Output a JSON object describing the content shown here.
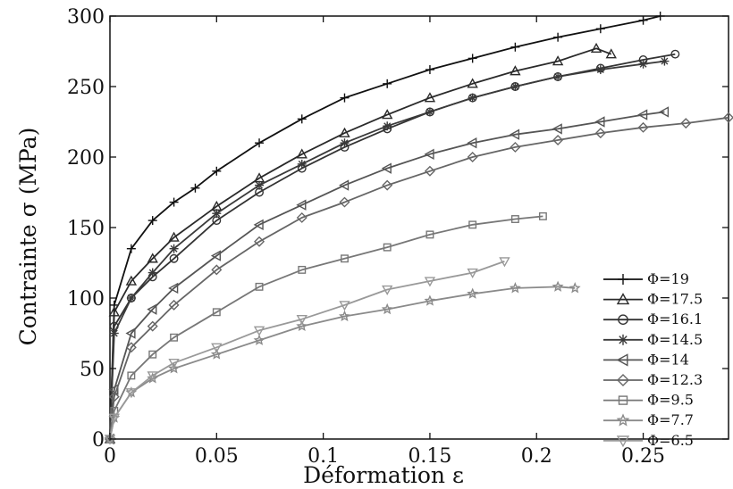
{
  "chart_data": {
    "type": "line",
    "xlabel": "Déformation ε",
    "ylabel": "Contrainte σ (MPa)",
    "xlim": [
      0,
      0.29
    ],
    "ylim": [
      0,
      300
    ],
    "xticks": [
      0,
      0.05,
      0.1,
      0.15,
      0.2,
      0.25
    ],
    "xtick_labels": [
      "0",
      "0.05",
      "0.1",
      "0.15",
      "0.2",
      "0.25"
    ],
    "yticks": [
      0,
      50,
      100,
      150,
      200,
      250,
      300
    ],
    "ytick_labels": [
      "0",
      "50",
      "100",
      "150",
      "200",
      "250",
      "300"
    ],
    "grid": false,
    "legend_position": "lower-right",
    "series": [
      {
        "name": "Φ=19",
        "marker": "plus",
        "color": "#111111",
        "x": [
          0,
          0.002,
          0.01,
          0.02,
          0.03,
          0.04,
          0.05,
          0.07,
          0.09,
          0.11,
          0.13,
          0.15,
          0.17,
          0.19,
          0.21,
          0.23,
          0.25,
          0.258
        ],
        "y": [
          0,
          95,
          135,
          155,
          168,
          178,
          190,
          210,
          227,
          242,
          252,
          262,
          270,
          278,
          285,
          291,
          297,
          300
        ]
      },
      {
        "name": "Φ=17.5",
        "marker": "triangle-up",
        "color": "#2a2a2a",
        "x": [
          0,
          0.002,
          0.01,
          0.02,
          0.03,
          0.05,
          0.07,
          0.09,
          0.11,
          0.13,
          0.15,
          0.17,
          0.19,
          0.21,
          0.228,
          0.235
        ],
        "y": [
          0,
          90,
          112,
          128,
          143,
          165,
          185,
          202,
          217,
          230,
          242,
          252,
          261,
          268,
          277,
          273
        ]
      },
      {
        "name": "Φ=16.1",
        "marker": "circle",
        "color": "#333333",
        "x": [
          0,
          0.002,
          0.01,
          0.02,
          0.03,
          0.05,
          0.07,
          0.09,
          0.11,
          0.13,
          0.15,
          0.17,
          0.19,
          0.21,
          0.23,
          0.25,
          0.265
        ],
        "y": [
          0,
          80,
          100,
          115,
          128,
          155,
          175,
          192,
          207,
          220,
          232,
          242,
          250,
          257,
          263,
          269,
          273
        ]
      },
      {
        "name": "Φ=14.5",
        "marker": "asterisk",
        "color": "#3a3a3a",
        "x": [
          0,
          0.002,
          0.01,
          0.02,
          0.03,
          0.05,
          0.07,
          0.09,
          0.11,
          0.13,
          0.15,
          0.17,
          0.19,
          0.21,
          0.23,
          0.25,
          0.26
        ],
        "y": [
          0,
          75,
          100,
          118,
          135,
          160,
          180,
          195,
          210,
          222,
          232,
          242,
          250,
          257,
          262,
          266,
          268
        ]
      },
      {
        "name": "Φ=14",
        "marker": "triangle-left",
        "color": "#555555",
        "x": [
          0,
          0.002,
          0.01,
          0.02,
          0.03,
          0.05,
          0.07,
          0.09,
          0.11,
          0.13,
          0.15,
          0.17,
          0.19,
          0.21,
          0.23,
          0.25,
          0.26
        ],
        "y": [
          0,
          35,
          75,
          92,
          107,
          130,
          152,
          166,
          180,
          192,
          202,
          210,
          216,
          220,
          225,
          230,
          232
        ]
      },
      {
        "name": "Φ=12.3",
        "marker": "diamond",
        "color": "#666666",
        "x": [
          0,
          0.002,
          0.01,
          0.02,
          0.03,
          0.05,
          0.07,
          0.09,
          0.11,
          0.13,
          0.15,
          0.17,
          0.19,
          0.21,
          0.23,
          0.25,
          0.27,
          0.29
        ],
        "y": [
          0,
          30,
          65,
          80,
          95,
          120,
          140,
          157,
          168,
          180,
          190,
          200,
          207,
          212,
          217,
          221,
          224,
          228
        ]
      },
      {
        "name": "Φ=9.5",
        "marker": "square",
        "color": "#777777",
        "x": [
          0,
          0.002,
          0.01,
          0.02,
          0.03,
          0.05,
          0.07,
          0.09,
          0.11,
          0.13,
          0.15,
          0.17,
          0.19,
          0.203
        ],
        "y": [
          0,
          20,
          45,
          60,
          72,
          90,
          108,
          120,
          128,
          136,
          145,
          152,
          156,
          158
        ]
      },
      {
        "name": "Φ=7.7",
        "marker": "star",
        "color": "#8a8a8a",
        "x": [
          0,
          0.002,
          0.01,
          0.02,
          0.03,
          0.05,
          0.07,
          0.09,
          0.11,
          0.13,
          0.15,
          0.17,
          0.19,
          0.21,
          0.218
        ],
        "y": [
          0,
          15,
          33,
          43,
          50,
          60,
          70,
          80,
          87,
          92,
          98,
          103,
          107,
          108,
          107
        ]
      },
      {
        "name": "Φ=6.5",
        "marker": "triangle-down",
        "color": "#999999",
        "x": [
          0,
          0.002,
          0.01,
          0.02,
          0.03,
          0.05,
          0.07,
          0.09,
          0.11,
          0.13,
          0.15,
          0.17,
          0.185
        ],
        "y": [
          0,
          15,
          33,
          45,
          54,
          65,
          77,
          85,
          95,
          106,
          112,
          118,
          126
        ]
      }
    ]
  }
}
